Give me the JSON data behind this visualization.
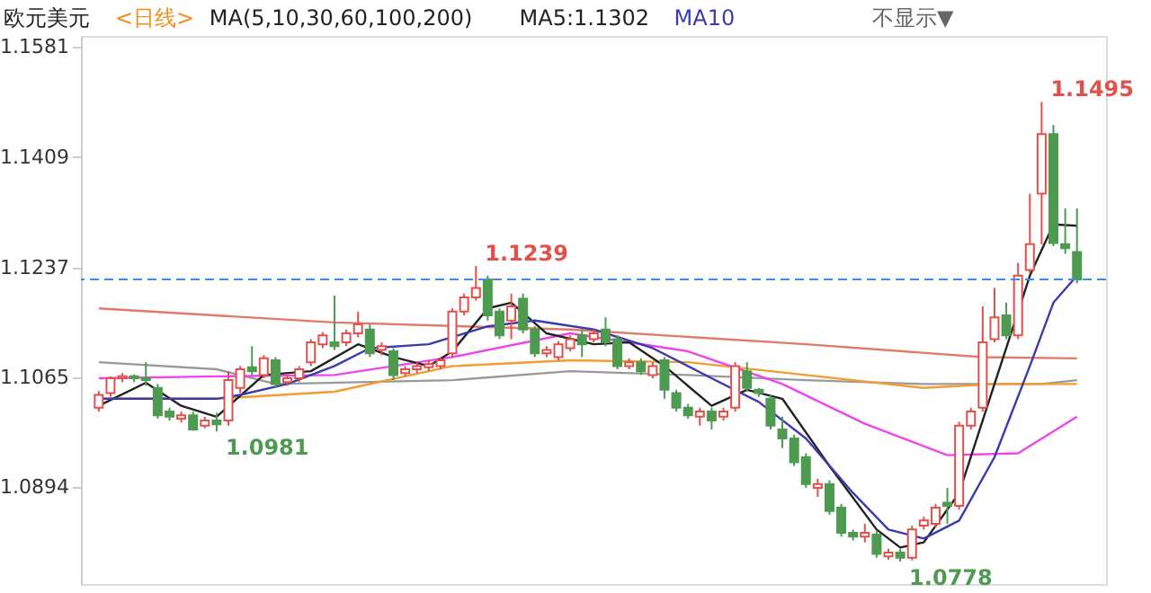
{
  "chart_data": {
    "type": "candlestick",
    "title": "欧元美元",
    "subtitle": "<日线>",
    "annotations": [
      "MA(5,10,30,60,100,200)",
      "不显示▼",
      "1.1495",
      "1.1239",
      "1.0981",
      "1.0778"
    ],
    "categories": [
      null,
      null,
      null,
      null,
      null,
      null,
      null,
      null,
      null,
      null,
      null,
      null,
      null,
      null,
      null,
      null,
      null,
      null,
      null,
      null,
      null,
      null,
      null,
      null,
      null,
      null,
      null,
      null,
      null,
      null,
      null,
      null,
      null,
      null,
      null,
      null,
      null,
      null,
      null,
      null,
      null,
      null,
      null,
      null,
      null,
      null,
      null,
      null,
      null,
      null,
      null,
      null,
      null,
      null,
      null,
      null,
      null,
      null,
      null,
      null,
      null,
      null,
      null,
      null,
      null,
      null,
      null,
      null,
      null,
      null,
      null,
      null,
      null,
      null,
      null,
      null,
      null,
      null,
      null,
      null,
      null,
      null,
      null,
      null
    ],
    "ohlc": [
      [
        1.1018,
        1.1044,
        1.1012,
        1.1038
      ],
      [
        1.1041,
        1.1067,
        1.1035,
        1.1064
      ],
      [
        1.1064,
        1.1072,
        1.1058,
        1.1067
      ],
      [
        1.1067,
        1.107,
        1.1058,
        1.1064
      ],
      [
        1.1064,
        1.1089,
        1.1052,
        1.1061
      ],
      [
        1.1049,
        1.1055,
        1.1001,
        1.1006
      ],
      [
        1.1012,
        1.1018,
        1.0998,
        1.1004
      ],
      [
        1.1001,
        1.1012,
        1.0995,
        1.1006
      ],
      [
        1.1006,
        1.1012,
        1.0982,
        1.0984
      ],
      [
        1.099,
        1.1004,
        1.0986,
        1.0998
      ],
      [
        1.0998,
        1.101,
        1.0981,
        1.0992
      ],
      [
        1.0998,
        1.1075,
        1.099,
        1.1061
      ],
      [
        1.1049,
        1.1083,
        1.1041,
        1.1078
      ],
      [
        1.1081,
        1.1114,
        1.1069,
        1.1075
      ],
      [
        1.1069,
        1.11,
        1.1064,
        1.1095
      ],
      [
        1.1092,
        1.1097,
        1.1049,
        1.1055
      ],
      [
        1.1058,
        1.107,
        1.1052,
        1.1064
      ],
      [
        1.1064,
        1.1083,
        1.1058,
        1.1078
      ],
      [
        1.1089,
        1.1125,
        1.1083,
        1.112
      ],
      [
        1.1117,
        1.1136,
        1.1111,
        1.1131
      ],
      [
        1.112,
        1.1193,
        1.1108,
        1.1114
      ],
      [
        1.112,
        1.114,
        1.1114,
        1.1134
      ],
      [
        1.1134,
        1.1168,
        1.1128,
        1.1148
      ],
      [
        1.114,
        1.1148,
        1.1097,
        1.1103
      ],
      [
        1.1108,
        1.112,
        1.11,
        1.1114
      ],
      [
        1.1106,
        1.1111,
        1.1061,
        1.1069
      ],
      [
        1.1072,
        1.1083,
        1.1067,
        1.1078
      ],
      [
        1.1078,
        1.1089,
        1.1072,
        1.1083
      ],
      [
        1.1081,
        1.1092,
        1.1075,
        1.1086
      ],
      [
        1.1083,
        1.1097,
        1.1078,
        1.1092
      ],
      [
        1.1103,
        1.1173,
        1.1097,
        1.1168
      ],
      [
        1.1168,
        1.1196,
        1.1162,
        1.119
      ],
      [
        1.119,
        1.1239,
        1.1185,
        1.1205
      ],
      [
        1.1218,
        1.1224,
        1.1154,
        1.1162
      ],
      [
        1.1168,
        1.1173,
        1.1125,
        1.1131
      ],
      [
        1.1154,
        1.1196,
        1.1125,
        1.1176
      ],
      [
        1.1188,
        1.1196,
        1.1134,
        1.114
      ],
      [
        1.114,
        1.1145,
        1.1097,
        1.1103
      ],
      [
        1.1103,
        1.1114,
        1.1097,
        1.1108
      ],
      [
        1.1097,
        1.1122,
        1.1092,
        1.1117
      ],
      [
        1.1111,
        1.1131,
        1.1106,
        1.1125
      ],
      [
        1.1131,
        1.114,
        1.1097,
        1.1117
      ],
      [
        1.1125,
        1.114,
        1.112,
        1.1134
      ],
      [
        1.114,
        1.1159,
        1.1114,
        1.112
      ],
      [
        1.1125,
        1.1131,
        1.1078,
        1.1083
      ],
      [
        1.1083,
        1.1095,
        1.1078,
        1.1089
      ],
      [
        1.1089,
        1.1095,
        1.1069,
        1.1075
      ],
      [
        1.1069,
        1.1089,
        1.1064,
        1.1083
      ],
      [
        1.1092,
        1.1097,
        1.1032,
        1.1046
      ],
      [
        1.1041,
        1.1046,
        1.1012,
        1.1018
      ],
      [
        1.1018,
        1.1024,
        1.1001,
        1.1006
      ],
      [
        1.1004,
        1.1018,
        1.099,
        1.1012
      ],
      [
        1.1012,
        1.1018,
        1.0984,
        1.0998
      ],
      [
        1.1004,
        1.1018,
        1.0998,
        1.1012
      ],
      [
        1.1018,
        1.1089,
        1.1012,
        1.1083
      ],
      [
        1.1075,
        1.1089,
        1.1044,
        1.1049
      ],
      [
        1.1046,
        1.1049,
        1.1035,
        1.1041
      ],
      [
        1.1032,
        1.1038,
        1.0984,
        1.099
      ],
      [
        1.0984,
        1.1004,
        1.0955,
        1.097
      ],
      [
        1.097,
        1.0976,
        1.0927,
        1.0933
      ],
      [
        1.0941,
        1.0947,
        1.0893,
        1.0899
      ],
      [
        1.0893,
        1.0907,
        1.0879,
        1.0899
      ],
      [
        1.0899,
        1.0905,
        1.0851,
        1.0857
      ],
      [
        1.0862,
        1.0868,
        1.0817,
        1.0823
      ],
      [
        1.0823,
        1.0828,
        1.0811,
        1.0817
      ],
      [
        1.0817,
        1.0837,
        1.0808,
        1.0823
      ],
      [
        1.082,
        1.0826,
        1.0784,
        1.079
      ],
      [
        1.0786,
        1.0798,
        1.0781,
        1.0792
      ],
      [
        1.0792,
        1.0798,
        1.0778,
        1.0784
      ],
      [
        1.0784,
        1.0834,
        1.078,
        1.0828
      ],
      [
        1.0834,
        1.0848,
        1.0828,
        1.0842
      ],
      [
        1.0837,
        1.0868,
        1.0831,
        1.0862
      ],
      [
        1.087,
        1.0893,
        1.0837,
        1.0865
      ],
      [
        1.0865,
        1.0996,
        1.0859,
        1.099
      ],
      [
        1.099,
        1.1018,
        1.0984,
        1.1012
      ],
      [
        1.1018,
        1.1176,
        1.1012,
        1.112
      ],
      [
        1.1125,
        1.1205,
        1.112,
        1.1159
      ],
      [
        1.1162,
        1.1182,
        1.1125,
        1.1131
      ],
      [
        1.1131,
        1.1244,
        1.1125,
        1.1224
      ],
      [
        1.1233,
        1.1352,
        1.1227,
        1.1273
      ],
      [
        1.1352,
        1.1495,
        1.1273,
        1.1445
      ],
      [
        1.1445,
        1.1459,
        1.127,
        1.1275
      ],
      [
        1.1273,
        1.1329,
        1.1258,
        1.1267
      ],
      [
        1.1261,
        1.1329,
        1.1212,
        1.1218
      ]
    ],
    "colors": [
      "#e2504c",
      "#e2504c",
      "#e2504c",
      "#4e9a50",
      "#4e9a50",
      "#4e9a50",
      "#4e9a50",
      "#e2504c",
      "#4e9a50",
      "#e2504c",
      "#4e9a50",
      "#e2504c",
      "#e2504c",
      "#4e9a50",
      "#e2504c",
      "#4e9a50",
      "#e2504c",
      "#e2504c",
      "#e2504c",
      "#e2504c",
      "#4e9a50",
      "#e2504c",
      "#e2504c",
      "#4e9a50",
      "#e2504c",
      "#4e9a50",
      "#e2504c",
      "#e2504c",
      "#e2504c",
      "#e2504c",
      "#e2504c",
      "#e2504c",
      "#e2504c",
      "#4e9a50",
      "#4e9a50",
      "#e2504c",
      "#4e9a50",
      "#4e9a50",
      "#e2504c",
      "#e2504c",
      "#e2504c",
      "#4e9a50",
      "#e2504c",
      "#4e9a50",
      "#4e9a50",
      "#e2504c",
      "#4e9a50",
      "#e2504c",
      "#4e9a50",
      "#4e9a50",
      "#4e9a50",
      "#e2504c",
      "#4e9a50",
      "#e2504c",
      "#e2504c",
      "#4e9a50",
      "#4e9a50",
      "#4e9a50",
      "#4e9a50",
      "#4e9a50",
      "#4e9a50",
      "#e2504c",
      "#4e9a50",
      "#4e9a50",
      "#4e9a50",
      "#e2504c",
      "#4e9a50",
      "#e2504c",
      "#4e9a50",
      "#e2504c",
      "#e2504c",
      "#e2504c",
      "#4e9a50",
      "#e2504c",
      "#e2504c",
      "#e2504c",
      "#e2504c",
      "#4e9a50",
      "#e2504c",
      "#e2504c",
      "#e2504c",
      "#4e9a50",
      "#4e9a50",
      "#4e9a50"
    ],
    "series": [
      {
        "type": "line",
        "color": "#e07a6a",
        "values": [
          1.1173,
          null,
          null,
          null,
          null,
          null,
          null,
          null,
          null,
          null,
          null,
          null,
          null,
          null,
          null,
          null,
          null,
          null,
          null,
          null,
          1.1151,
          null,
          null,
          null,
          null,
          null,
          null,
          null,
          null,
          null,
          null,
          null,
          null,
          null,
          null,
          null,
          null,
          null,
          null,
          null,
          1.114,
          null,
          null,
          null,
          null,
          null,
          null,
          null,
          null,
          null,
          null,
          null,
          null,
          null,
          null,
          null,
          null,
          null,
          null,
          null,
          1.1117,
          null,
          null,
          null,
          null,
          null,
          null,
          null,
          null,
          null,
          null,
          null,
          null,
          null,
          null,
          1.1097,
          null,
          null,
          null,
          null,
          null,
          null,
          null,
          1.1095
        ]
      },
      {
        "type": "line",
        "color": "#999999",
        "values": [
          1.1089,
          null,
          null,
          null,
          null,
          null,
          null,
          null,
          null,
          null,
          1.1078,
          null,
          null,
          null,
          null,
          1.1055,
          null,
          null,
          null,
          null,
          null,
          null,
          null,
          null,
          null,
          null,
          null,
          null,
          null,
          null,
          1.1061,
          null,
          null,
          null,
          null,
          null,
          null,
          null,
          null,
          null,
          1.1075,
          null,
          null,
          null,
          null,
          null,
          null,
          null,
          null,
          null,
          1.1069,
          null,
          null,
          null,
          null,
          null,
          null,
          null,
          null,
          null,
          1.1061,
          null,
          null,
          null,
          null,
          null,
          null,
          null,
          null,
          null,
          1.1055,
          null,
          null,
          null,
          null,
          null,
          null,
          null,
          null,
          null,
          1.1055,
          null,
          null,
          1.1061
        ]
      },
      {
        "type": "line",
        "color": "#f39c32",
        "values": [
          1.1032,
          null,
          null,
          null,
          null,
          null,
          null,
          null,
          null,
          null,
          1.1032,
          null,
          null,
          null,
          null,
          null,
          null,
          null,
          null,
          null,
          1.1043,
          null,
          null,
          null,
          null,
          null,
          null,
          null,
          null,
          null,
          1.1083,
          null,
          null,
          null,
          null,
          null,
          null,
          null,
          null,
          null,
          1.1092,
          null,
          null,
          null,
          null,
          null,
          null,
          null,
          null,
          null,
          1.1089,
          null,
          null,
          null,
          null,
          null,
          null,
          null,
          null,
          null,
          1.1069,
          null,
          null,
          null,
          null,
          null,
          null,
          null,
          null,
          null,
          1.1049,
          null,
          null,
          null,
          null,
          null,
          1.1055,
          null,
          null,
          null,
          null,
          null,
          null,
          1.1055
        ]
      },
      {
        "type": "line",
        "color": "#ee44ee",
        "values": [
          1.1064,
          null,
          null,
          null,
          null,
          null,
          null,
          null,
          null,
          null,
          1.1067,
          null,
          null,
          null,
          null,
          null,
          null,
          null,
          null,
          null,
          1.1069,
          null,
          null,
          null,
          null,
          null,
          null,
          null,
          null,
          null,
          1.1097,
          null,
          null,
          null,
          null,
          null,
          null,
          null,
          null,
          null,
          1.1134,
          null,
          null,
          null,
          null,
          null,
          null,
          null,
          null,
          null,
          1.1106,
          null,
          null,
          null,
          null,
          null,
          null,
          null,
          1.1055,
          null,
          null,
          null,
          null,
          null,
          null,
          1.0993,
          null,
          null,
          null,
          null,
          null,
          null,
          1.0944,
          null,
          null,
          null,
          null,
          null,
          1.0947,
          null,
          null,
          null,
          null,
          1.1004
        ]
      },
      {
        "type": "line",
        "name": "MA5:1.1302",
        "color": "#222222",
        "values": [
          1.1021,
          null,
          null,
          null,
          1.1057,
          null,
          null,
          1.1021,
          null,
          null,
          1.1004,
          null,
          null,
          null,
          1.1069,
          null,
          null,
          null,
          1.1075,
          null,
          null,
          null,
          1.1117,
          null,
          null,
          1.1097,
          null,
          null,
          1.1083,
          null,
          1.1106,
          null,
          null,
          1.1173,
          null,
          1.1182,
          null,
          null,
          1.1134,
          null,
          null,
          null,
          1.1117,
          null,
          null,
          1.112,
          null,
          null,
          1.1083,
          null,
          null,
          null,
          1.1021,
          null,
          null,
          1.1046,
          null,
          null,
          1.1032,
          null,
          null,
          null,
          1.0927,
          null,
          null,
          null,
          1.0828,
          null,
          1.08,
          null,
          1.0808,
          null,
          null,
          1.0885,
          null,
          null,
          1.1055,
          null,
          null,
          1.1224,
          null,
          1.1304,
          null,
          1.1302
        ]
      },
      {
        "type": "line",
        "name": "MA10",
        "color": "#3b3bb0",
        "values": [
          1.1032,
          null,
          null,
          null,
          null,
          null,
          null,
          null,
          null,
          null,
          1.1032,
          null,
          1.1038,
          null,
          null,
          null,
          1.1055,
          null,
          null,
          null,
          1.1083,
          null,
          null,
          1.1111,
          null,
          null,
          null,
          null,
          1.1117,
          null,
          null,
          null,
          null,
          1.1145,
          null,
          null,
          null,
          1.1154,
          null,
          null,
          null,
          null,
          1.114,
          null,
          null,
          null,
          null,
          1.1111,
          null,
          null,
          null,
          null,
          1.1064,
          null,
          null,
          null,
          1.1027,
          null,
          null,
          null,
          1.097,
          null,
          null,
          null,
          1.0885,
          null,
          null,
          1.0828,
          null,
          null,
          1.0814,
          null,
          null,
          1.0842,
          null,
          null,
          1.0941,
          null,
          null,
          1.1083,
          null,
          1.1182,
          null,
          1.1224
        ]
      }
    ],
    "ref_lines": [
      {
        "axis": "y",
        "value": 1.1218,
        "color": "#3a8ee6",
        "line_style": "dashed"
      }
    ],
    "ylim": [
      1.0743,
      1.1598
    ],
    "yticks": [
      1.1581,
      1.1409,
      1.1237,
      1.1065,
      1.0894
    ],
    "tick_labels": "y",
    "legend": "top left",
    "marker": "none",
    "line_style": "solid"
  }
}
